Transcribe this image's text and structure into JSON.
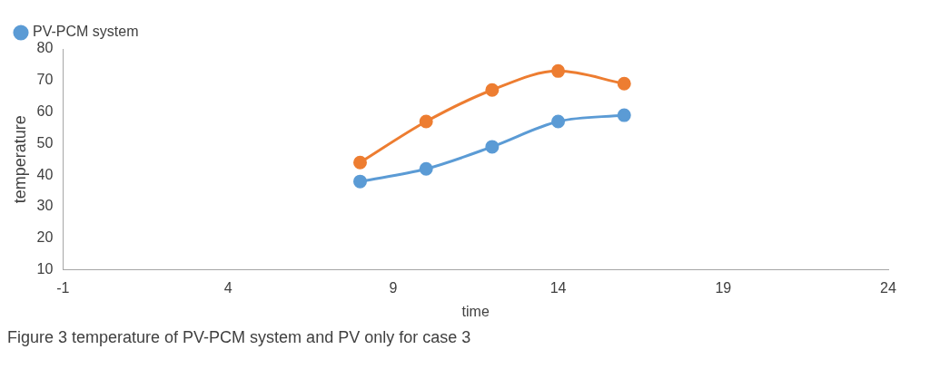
{
  "chart_data": {
    "type": "line",
    "xlabel": "time",
    "ylabel": "temperature",
    "x": [
      8,
      10,
      12,
      14,
      16
    ],
    "series": [
      {
        "name": "PV-PCM system",
        "color": "#5b9bd5",
        "values": [
          38,
          42,
          49,
          57,
          59
        ]
      },
      {
        "color": "#ed7d31",
        "values": [
          44,
          57,
          67,
          73,
          69
        ]
      }
    ],
    "xlim": [
      -1,
      24
    ],
    "xticks": [
      -1,
      4,
      9,
      14,
      19,
      24
    ],
    "ylim": [
      10,
      80
    ],
    "yticks": [
      10,
      20,
      30,
      40,
      50,
      60,
      70,
      80
    ],
    "grid": false,
    "legend": "top left",
    "marker": "circle",
    "line_style": "solid",
    "annotations": [
      "Figure 3 temperature of PV-PCM system and PV only for case 3"
    ]
  }
}
